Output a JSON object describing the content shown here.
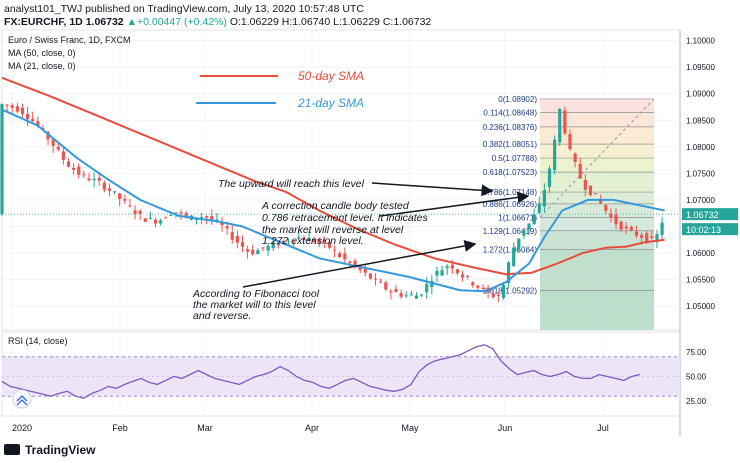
{
  "header": {
    "line1": "analyst101_TWJ published on TradingView.com, July 13, 2020 10:57:48 UTC",
    "symbol": "FX:EURCHF, 1D",
    "last": "1.06732",
    "change": "+0.00447 (+0.42%)",
    "open": "O:1.06229",
    "high": "H:1.06740",
    "low": "L:1.06229",
    "close": "C:1.06732"
  },
  "panel": {
    "title": "Euro / Swiss Franc, 1D, FXCM",
    "ma50_label": "MA (50, close, 0)",
    "ma21_label": "MA (21, close, 0)",
    "rsi_label": "RSI (14, close)",
    "price_tag": "1.06732",
    "time_tag": "10:02:13",
    "collapse_icon": "chevrons-up-icon"
  },
  "legend": {
    "sma50": "50-day SMA",
    "sma21": "21-day SMA",
    "sma50_color": "#e74c3c",
    "sma21_color": "#3498db"
  },
  "annotations": [
    "The upward will reach this level",
    "A correction candle body tested",
    "0.786 retracement level. It indicates",
    "the market will reverse at level",
    "1.272 extension level.",
    "According to Fibonacci tool",
    "the market will to this level",
    "and reverse."
  ],
  "footer": {
    "brand": "TradingView"
  },
  "chart_data": [
    {
      "type": "candlestick",
      "y_axis_labels": [
        "1.10000",
        "1.09500",
        "1.09000",
        "1.08500",
        "1.08000",
        "1.07500",
        "1.07000",
        "1.06500",
        "1.06000",
        "1.05500",
        "1.05000"
      ],
      "x_axis_labels": [
        "2020",
        "Feb",
        "Mar",
        "Apr",
        "May",
        "Jun",
        "Jul"
      ],
      "ylim": [
        1.0455,
        1.102
      ],
      "fibonacci": [
        {
          "ratio": "0",
          "price": "1.08902"
        },
        {
          "ratio": "0.114",
          "price": "1.08648"
        },
        {
          "ratio": "0.236",
          "price": "1.08376"
        },
        {
          "ratio": "0.382",
          "price": "1.08051"
        },
        {
          "ratio": "0.5",
          "price": "1.07788"
        },
        {
          "ratio": "0.618",
          "price": "1.07523"
        },
        {
          "ratio": "0.786",
          "price": "1.07148"
        },
        {
          "ratio": "0.886",
          "price": "1.06926"
        },
        {
          "ratio": "1",
          "price": "1.06671"
        },
        {
          "ratio": "1.129",
          "price": "1.06419"
        },
        {
          "ratio": "1.272",
          "price": "1.06064"
        },
        {
          "ratio": "1.618",
          "price": "1.05292"
        }
      ],
      "series": [
        {
          "name": "MA (50, close, 0)",
          "color": "#e74c3c",
          "points": [
            [
              1,
              1.093
            ],
            [
              20,
              1.0895
            ],
            [
              40,
              1.0855
            ],
            [
              60,
              1.0815
            ],
            [
              80,
              1.0775
            ],
            [
              100,
              1.0735
            ],
            [
              112,
              1.0715
            ],
            [
              125,
              1.068
            ],
            [
              140,
              1.0645
            ],
            [
              155,
              1.0615
            ],
            [
              170,
              1.059
            ],
            [
              186,
              1.0572
            ],
            [
              198,
              1.056
            ],
            [
              208,
              1.0563
            ],
            [
              218,
              1.058
            ],
            [
              228,
              1.06
            ],
            [
              237,
              1.061
            ],
            [
              245,
              1.0612
            ],
            [
              252,
              1.062
            ],
            [
              260,
              1.0625
            ]
          ]
        },
        {
          "name": "MA (21, close, 0)",
          "color": "#3498db",
          "points": [
            [
              1,
              1.087
            ],
            [
              15,
              1.084
            ],
            [
              30,
              1.078
            ],
            [
              42,
              1.074
            ],
            [
              55,
              1.07
            ],
            [
              70,
              1.067
            ],
            [
              85,
              1.066
            ],
            [
              95,
              1.065
            ],
            [
              110,
              1.062
            ],
            [
              125,
              1.059
            ],
            [
              140,
              1.0575
            ],
            [
              160,
              1.0555
            ],
            [
              180,
              1.053
            ],
            [
              190,
              1.0528
            ],
            [
              198,
              1.0545
            ],
            [
              207,
              1.058
            ],
            [
              213,
              1.063
            ],
            [
              220,
              1.068
            ],
            [
              230,
              1.07
            ],
            [
              240,
              1.07
            ],
            [
              250,
              1.069
            ],
            [
              260,
              1.068
            ]
          ]
        }
      ],
      "ohlc_path": [
        [
          1,
          1.088
        ],
        [
          8,
          1.087
        ],
        [
          14,
          1.0845
        ],
        [
          20,
          1.081
        ],
        [
          26,
          1.077
        ],
        [
          32,
          1.0745
        ],
        [
          38,
          1.0735
        ],
        [
          44,
          1.0715
        ],
        [
          50,
          1.069
        ],
        [
          56,
          1.0665
        ],
        [
          62,
          1.066
        ],
        [
          68,
          1.068
        ],
        [
          74,
          1.0665
        ],
        [
          80,
          1.067
        ],
        [
          86,
          1.0655
        ],
        [
          92,
          1.0625
        ],
        [
          98,
          1.06
        ],
        [
          104,
          1.061
        ],
        [
          110,
          1.062
        ],
        [
          116,
          1.063
        ],
        [
          122,
          1.0625
        ],
        [
          128,
          1.0615
        ],
        [
          134,
          1.059
        ],
        [
          140,
          1.057
        ],
        [
          146,
          1.055
        ],
        [
          152,
          1.053
        ],
        [
          158,
          1.052
        ],
        [
          164,
          1.052
        ],
        [
          170,
          1.056
        ],
        [
          176,
          1.058
        ],
        [
          180,
          1.056
        ],
        [
          186,
          1.054
        ],
        [
          192,
          1.052
        ],
        [
          196,
          1.052
        ],
        [
          200,
          1.06
        ],
        [
          204,
          1.064
        ],
        [
          208,
          1.066
        ],
        [
          212,
          1.07
        ],
        [
          216,
          1.078
        ],
        [
          219,
          1.087
        ],
        [
          223,
          1.079
        ],
        [
          228,
          1.073
        ],
        [
          234,
          1.07
        ],
        [
          240,
          1.066
        ],
        [
          246,
          1.064
        ],
        [
          252,
          1.063
        ],
        [
          256,
          1.062
        ],
        [
          260,
          1.0673
        ]
      ]
    },
    {
      "type": "line",
      "name": "RSI (14, close)",
      "y_axis_labels": [
        "75.00",
        "50.00",
        "25.00"
      ],
      "ylim": [
        10,
        95
      ],
      "band": [
        30,
        70
      ],
      "values": [
        45,
        40,
        38,
        36,
        34,
        32,
        30,
        33,
        35,
        30,
        28,
        33,
        36,
        40,
        38,
        42,
        45,
        48,
        44,
        42,
        46,
        50,
        48,
        52,
        56,
        52,
        48,
        46,
        44,
        42,
        46,
        50,
        52,
        55,
        60,
        56,
        50,
        46,
        44,
        40,
        38,
        42,
        46,
        48,
        44,
        40,
        38,
        36,
        35,
        37,
        42,
        55,
        62,
        66,
        68,
        70,
        72,
        76,
        80,
        82,
        78,
        66,
        58,
        52,
        54,
        56,
        52,
        50,
        52,
        55,
        50,
        48,
        48,
        52,
        50,
        48,
        46,
        50,
        52
      ]
    }
  ]
}
